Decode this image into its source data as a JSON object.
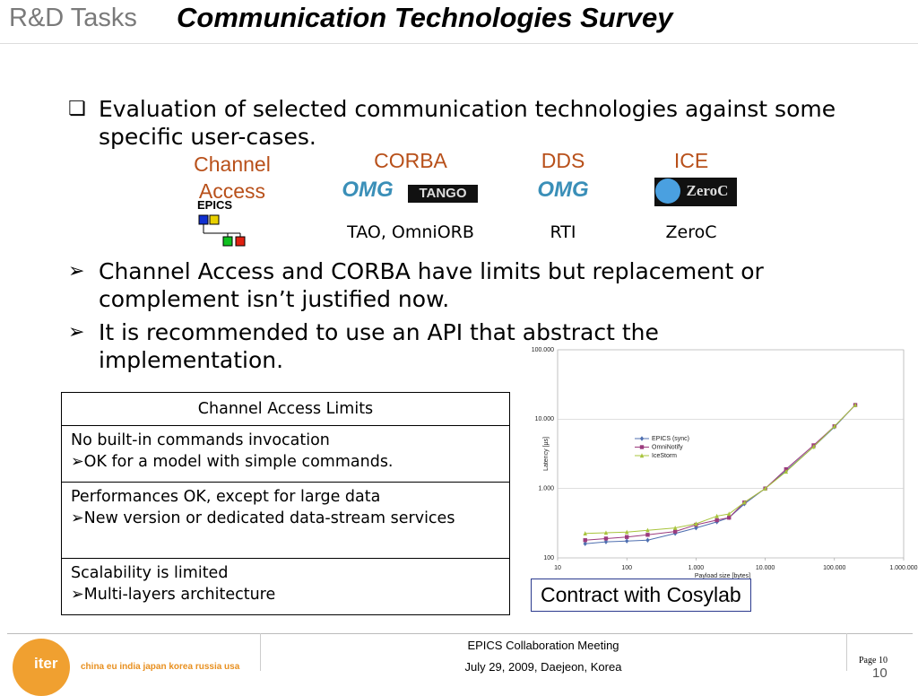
{
  "header": {
    "section": "R&D Tasks",
    "title": "Communication Technologies Survey"
  },
  "bullets": [
    "Evaluation of selected communication technologies against some specific user-cases.",
    "Channel Access and CORBA have limits but replacement or complement isn’t justified now.",
    "It is recommended to use an API that abstract the implementation."
  ],
  "technologies": [
    {
      "name": "Channel Access",
      "logos": [
        "EPICS"
      ]
    },
    {
      "name": "CORBA",
      "logos": [
        "OMG",
        "TANGO"
      ],
      "impl": "TAO, OmniORB"
    },
    {
      "name": "DDS",
      "logos": [
        "OMG"
      ],
      "impl": "RTI"
    },
    {
      "name": "ICE",
      "logos": [
        "ZeroC"
      ],
      "impl": "ZeroC"
    }
  ],
  "table": {
    "header": "Channel Access Limits",
    "rows": [
      {
        "main": "No built-in commands invocation",
        "sub": "OK for a model with simple commands."
      },
      {
        "main": "Performances OK, except for large data",
        "sub": "New version or dedicated data-stream services"
      },
      {
        "main": "Scalability is limited",
        "sub": "Multi-layers architecture"
      }
    ]
  },
  "note": "Contract with Cosylab",
  "footer": {
    "logo": "iter",
    "tagline": "china eu india japan korea russia usa",
    "event": "EPICS Collaboration Meeting",
    "date": "July 29, 2009, Daejeon, Korea",
    "page_label": "Page 10",
    "page": "10"
  },
  "chart_data": {
    "type": "line",
    "xlabel": "Payload size [bytes]",
    "ylabel": "Latency [µs]",
    "xscale": "log",
    "yscale": "log",
    "grid": true,
    "legend": "upper center",
    "x": [
      25,
      50,
      100,
      200,
      500,
      1000,
      2000,
      3000,
      5000,
      10000,
      20000,
      50000,
      100000,
      200000
    ],
    "series": [
      {
        "name": "EPICS (sync)",
        "color": "#4f6fb0",
        "marker": "diamond",
        "values": [
          160,
          170,
          175,
          180,
          225,
          270,
          330,
          380,
          600,
          1000,
          1800,
          4000,
          7700,
          16000
        ]
      },
      {
        "name": "OmniNotify",
        "color": "#9b3b7e",
        "marker": "square",
        "values": [
          180,
          190,
          200,
          215,
          240,
          300,
          350,
          380,
          630,
          1000,
          1900,
          4200,
          7900,
          16000
        ]
      },
      {
        "name": "IceStorm",
        "color": "#a8c43c",
        "marker": "triangle",
        "values": [
          225,
          230,
          235,
          250,
          270,
          310,
          400,
          430,
          630,
          1000,
          1750,
          4000,
          7900,
          16000
        ]
      }
    ],
    "xlim": [
      10,
      1000000
    ],
    "ylim": [
      100,
      100000
    ],
    "xticks": [
      10,
      100,
      {
        "value": 1000,
        "label": "1.000"
      },
      {
        "value": 10000,
        "label": "10.000"
      },
      {
        "value": 100000,
        "label": "100.000"
      },
      {
        "value": 1000000,
        "label": "1.000.000"
      }
    ],
    "yticks": [
      100,
      {
        "value": 1000,
        "label": "1.000"
      },
      {
        "value": 10000,
        "label": "10.000"
      },
      {
        "value": 100000,
        "label": "100.000"
      }
    ]
  }
}
